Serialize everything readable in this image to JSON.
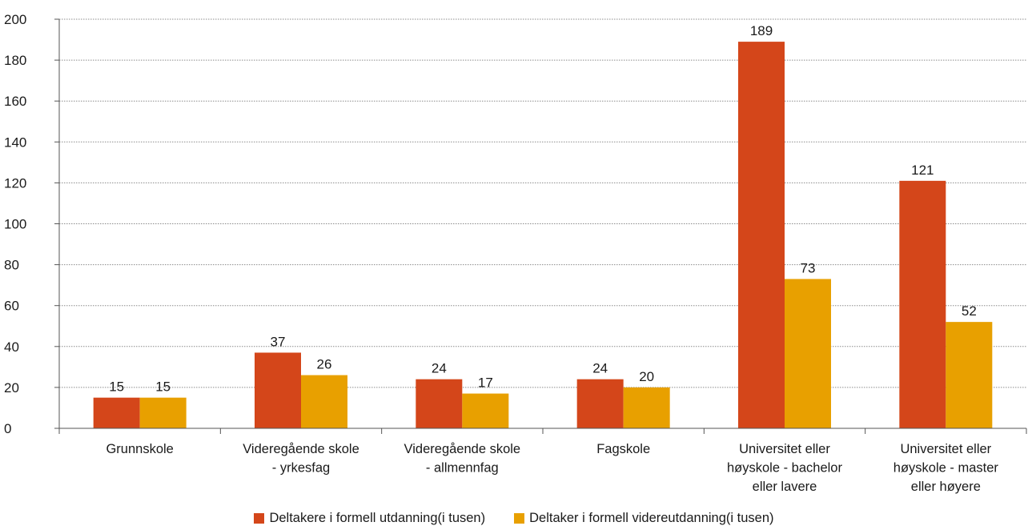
{
  "chart_data": {
    "type": "bar",
    "categories": [
      [
        "Grunnskole"
      ],
      [
        "Videregående skole",
        "- yrkesfag"
      ],
      [
        "Videregående skole",
        "- allmennfag"
      ],
      [
        "Fagskole"
      ],
      [
        "Universitet eller",
        "høyskole - bachelor",
        "eller lavere"
      ],
      [
        "Universitet eller",
        "høyskole - master",
        "eller høyere"
      ]
    ],
    "series": [
      {
        "name": "Deltakere i formell utdanning(i tusen)",
        "color": "#d4461a",
        "values": [
          15,
          37,
          24,
          24,
          189,
          121
        ]
      },
      {
        "name": "Deltaker i formell videreutdanning(i tusen)",
        "color": "#e8a000",
        "values": [
          15,
          26,
          17,
          20,
          73,
          52
        ]
      }
    ],
    "ylim": [
      0,
      200
    ],
    "yticks": [
      0,
      20,
      40,
      60,
      80,
      100,
      120,
      140,
      160,
      180,
      200
    ],
    "grid": true,
    "legend_position": "bottom"
  }
}
